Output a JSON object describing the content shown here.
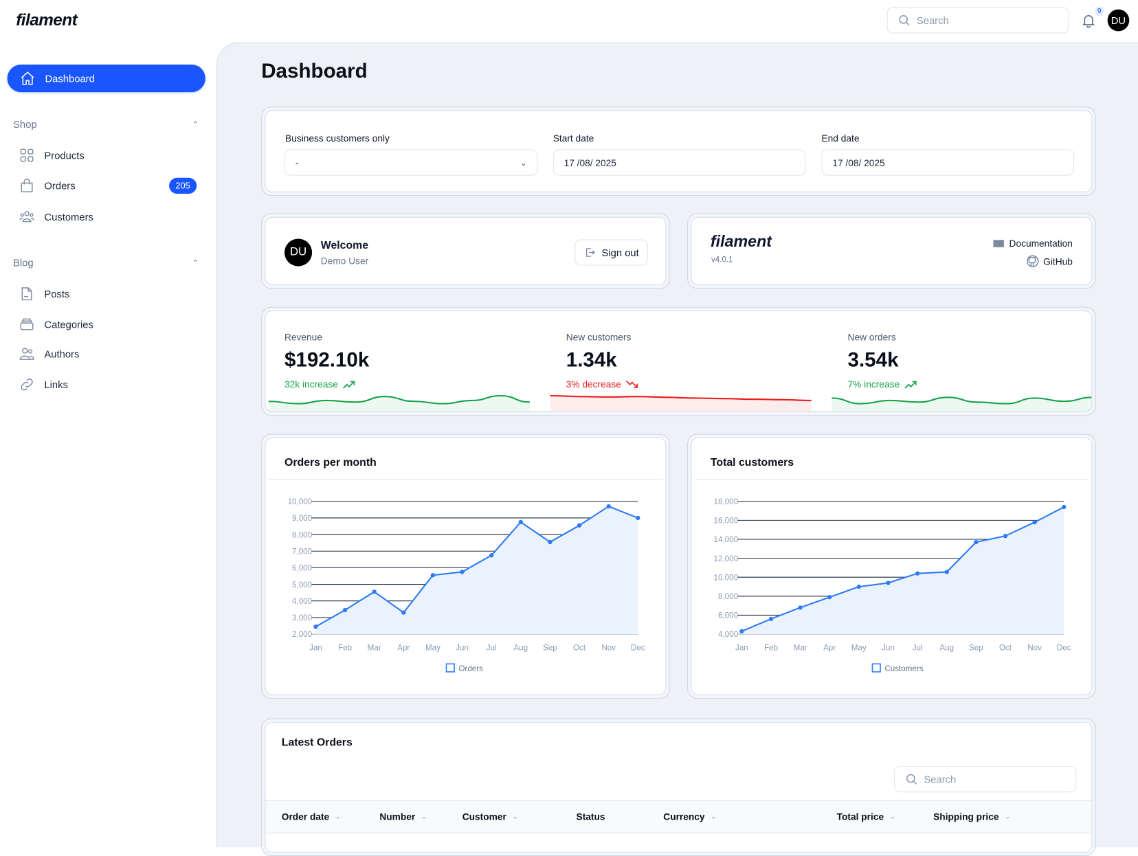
{
  "topbar": {
    "logo": "filament",
    "search_placeholder": "Search",
    "notifications_count": "9",
    "avatar": "DU"
  },
  "sidebar": {
    "dashboard": "Dashboard",
    "groups": [
      {
        "label": "Shop",
        "items": [
          {
            "label": "Products"
          },
          {
            "label": "Orders",
            "badge": "205"
          },
          {
            "label": "Customers"
          }
        ]
      },
      {
        "label": "Blog",
        "items": [
          {
            "label": "Posts"
          },
          {
            "label": "Categories"
          },
          {
            "label": "Authors"
          },
          {
            "label": "Links"
          }
        ]
      }
    ]
  },
  "page": {
    "title": "Dashboard"
  },
  "filters": {
    "business_label": "Business customers only",
    "business_value": "-",
    "start_label": "Start date",
    "start_value": "17 /08/ 2025",
    "end_label": "End date",
    "end_value": "17 /08/ 2025"
  },
  "account": {
    "avatar": "DU",
    "welcome": "Welcome",
    "name": "Demo User",
    "sign_out": "Sign out"
  },
  "info": {
    "logo": "filament",
    "version": "v4.0.1",
    "documentation": "Documentation",
    "github": "GitHub"
  },
  "stats": [
    {
      "label": "Revenue",
      "value": "$192.10k",
      "desc": "32k increase",
      "trend": "up",
      "color": "#16a34a"
    },
    {
      "label": "New customers",
      "value": "1.34k",
      "desc": "3% decrease",
      "trend": "down",
      "color": "#ef1a1a"
    },
    {
      "label": "New orders",
      "value": "3.54k",
      "desc": "7% increase",
      "trend": "up",
      "color": "#16a34a"
    }
  ],
  "chart_data": [
    {
      "type": "line",
      "title": "Orders per month",
      "categories": [
        "Jan",
        "Feb",
        "Mar",
        "Apr",
        "May",
        "Jun",
        "Jul",
        "Aug",
        "Sep",
        "Oct",
        "Nov",
        "Dec"
      ],
      "series": [
        {
          "name": "Orders",
          "values": [
            2450,
            3450,
            4550,
            3300,
            5550,
            5750,
            6750,
            8750,
            7550,
            8550,
            9700,
            9000
          ]
        }
      ],
      "ylim": [
        2000,
        10000
      ],
      "yticks": [
        "2,000",
        "3,000",
        "4,000",
        "5,000",
        "6,000",
        "7,000",
        "8,000",
        "9,000",
        "10,000"
      ],
      "legend": "bottom",
      "color": "#2f7bf5"
    },
    {
      "type": "line",
      "title": "Total customers",
      "categories": [
        "Jan",
        "Feb",
        "Mar",
        "Apr",
        "May",
        "Jun",
        "Jul",
        "Aug",
        "Sep",
        "Oct",
        "Nov",
        "Dec"
      ],
      "series": [
        {
          "name": "Customers",
          "values": [
            4300,
            5600,
            6800,
            7900,
            9000,
            9400,
            10400,
            10550,
            13700,
            14350,
            15800,
            17400
          ]
        }
      ],
      "ylim": [
        4000,
        18000
      ],
      "yticks": [
        "4,000",
        "6,000",
        "8,000",
        "10,000",
        "12,000",
        "14,000",
        "16,000",
        "18,000"
      ],
      "legend": "bottom",
      "color": "#2f7bf5"
    }
  ],
  "orders_table": {
    "title": "Latest Orders",
    "search_placeholder": "Search",
    "columns": [
      "Order date",
      "Number",
      "Customer",
      "Status",
      "Currency",
      "Total price",
      "Shipping price"
    ]
  }
}
